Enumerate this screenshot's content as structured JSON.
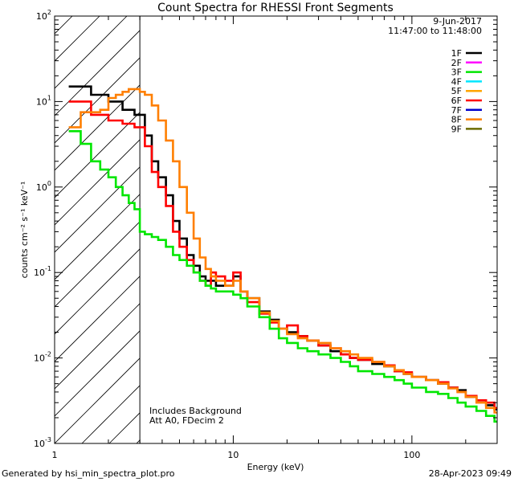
{
  "chart_data": {
    "type": "line",
    "title": "Count Spectra for RHESSI Front Segments",
    "xlabel": "Energy (keV)",
    "ylabel": "counts cm⁻² s⁻¹ keV⁻¹",
    "xscale": "log",
    "yscale": "log",
    "xlim": [
      1.0,
      300.0
    ],
    "ylim": [
      0.001,
      100.0
    ],
    "x_ticks": [
      {
        "value": 1,
        "label": "1"
      },
      {
        "value": 10,
        "label": "10"
      },
      {
        "value": 100,
        "label": "100"
      }
    ],
    "y_ticks": [
      {
        "value": 100,
        "base": "10",
        "exp": "2"
      },
      {
        "value": 10,
        "base": "10",
        "exp": "1"
      },
      {
        "value": 1,
        "base": "10",
        "exp": "0"
      },
      {
        "value": 0.1,
        "base": "10",
        "exp": "-1"
      },
      {
        "value": 0.01,
        "base": "10",
        "exp": "-2"
      },
      {
        "value": 0.001,
        "base": "10",
        "exp": "-3"
      }
    ],
    "hatched_region": {
      "x_from": 1.0,
      "x_to": 3.0,
      "description": "excluded below 3 keV"
    },
    "vertical_line_x": 3.0,
    "legend": {
      "date": "9-Jun-2017",
      "time_range": "11:47:00 to 11:48:00",
      "position": "top-right",
      "entries": [
        {
          "label": "1F",
          "color": "#000000"
        },
        {
          "label": "2F",
          "color": "#ff00ff"
        },
        {
          "label": "3F",
          "color": "#00e600"
        },
        {
          "label": "4F",
          "color": "#00e6ff"
        },
        {
          "label": "5F",
          "color": "#ffa500"
        },
        {
          "label": "6F",
          "color": "#ff0000"
        },
        {
          "label": "7F",
          "color": "#0000cc"
        },
        {
          "label": "8F",
          "color": "#ff7f00"
        },
        {
          "label": "9F",
          "color": "#6b6b00"
        }
      ]
    },
    "annotations": [
      "Includes Background",
      "Att A0, FDecim 2"
    ],
    "series": [
      {
        "name": "1F",
        "color": "#000000",
        "points": [
          [
            1.2,
            15
          ],
          [
            1.4,
            15
          ],
          [
            1.6,
            12
          ],
          [
            1.8,
            12
          ],
          [
            2.0,
            10
          ],
          [
            2.2,
            10
          ],
          [
            2.4,
            8
          ],
          [
            2.6,
            8
          ],
          [
            2.8,
            7
          ],
          [
            3.0,
            7
          ],
          [
            3.2,
            4
          ],
          [
            3.5,
            2
          ],
          [
            3.8,
            1.3
          ],
          [
            4.2,
            0.8
          ],
          [
            4.6,
            0.4
          ],
          [
            5.0,
            0.25
          ],
          [
            5.5,
            0.16
          ],
          [
            6.0,
            0.12
          ],
          [
            6.5,
            0.09
          ],
          [
            7.0,
            0.08
          ],
          [
            7.5,
            0.08
          ],
          [
            8.0,
            0.07
          ],
          [
            9.0,
            0.07
          ],
          [
            10.0,
            0.09
          ],
          [
            11.0,
            0.06
          ],
          [
            12.0,
            0.05
          ],
          [
            14.0,
            0.035
          ],
          [
            16.0,
            0.028
          ],
          [
            18.0,
            0.022
          ],
          [
            20.0,
            0.02
          ],
          [
            23.0,
            0.018
          ],
          [
            26.0,
            0.016
          ],
          [
            30.0,
            0.014
          ],
          [
            35.0,
            0.012
          ],
          [
            40.0,
            0.011
          ],
          [
            45.0,
            0.01
          ],
          [
            50.0,
            0.0095
          ],
          [
            60.0,
            0.0085
          ],
          [
            70.0,
            0.008
          ],
          [
            80.0,
            0.007
          ],
          [
            90.0,
            0.0065
          ],
          [
            100.0,
            0.006
          ],
          [
            120.0,
            0.0055
          ],
          [
            140.0,
            0.005
          ],
          [
            160.0,
            0.0045
          ],
          [
            180.0,
            0.0042
          ],
          [
            200.0,
            0.0035
          ],
          [
            230.0,
            0.003
          ],
          [
            260.0,
            0.0028
          ],
          [
            290.0,
            0.0025
          ]
        ]
      },
      {
        "name": "6F",
        "color": "#ff0000",
        "points": [
          [
            1.2,
            10
          ],
          [
            1.4,
            10
          ],
          [
            1.6,
            7
          ],
          [
            1.8,
            7
          ],
          [
            2.0,
            6
          ],
          [
            2.2,
            6
          ],
          [
            2.4,
            5.5
          ],
          [
            2.6,
            5.5
          ],
          [
            2.8,
            5
          ],
          [
            3.0,
            5
          ],
          [
            3.2,
            3
          ],
          [
            3.5,
            1.5
          ],
          [
            3.8,
            1.0
          ],
          [
            4.2,
            0.6
          ],
          [
            4.6,
            0.3
          ],
          [
            5.0,
            0.2
          ],
          [
            5.5,
            0.14
          ],
          [
            6.0,
            0.1
          ],
          [
            6.5,
            0.08
          ],
          [
            7.0,
            0.07
          ],
          [
            7.5,
            0.1
          ],
          [
            8.0,
            0.09
          ],
          [
            9.0,
            0.08
          ],
          [
            10.0,
            0.1
          ],
          [
            11.0,
            0.06
          ],
          [
            12.0,
            0.045
          ],
          [
            14.0,
            0.033
          ],
          [
            16.0,
            0.026
          ],
          [
            18.0,
            0.022
          ],
          [
            20.0,
            0.024
          ],
          [
            23.0,
            0.018
          ],
          [
            26.0,
            0.016
          ],
          [
            30.0,
            0.014
          ],
          [
            35.0,
            0.013
          ],
          [
            40.0,
            0.011
          ],
          [
            45.0,
            0.01
          ],
          [
            50.0,
            0.0095
          ],
          [
            60.0,
            0.009
          ],
          [
            70.0,
            0.0082
          ],
          [
            80.0,
            0.007
          ],
          [
            90.0,
            0.0068
          ],
          [
            100.0,
            0.006
          ],
          [
            120.0,
            0.0055
          ],
          [
            140.0,
            0.0052
          ],
          [
            160.0,
            0.0045
          ],
          [
            180.0,
            0.004
          ],
          [
            200.0,
            0.0036
          ],
          [
            230.0,
            0.0032
          ],
          [
            260.0,
            0.003
          ],
          [
            290.0,
            0.0026
          ]
        ]
      },
      {
        "name": "8F",
        "color": "#ff7f00",
        "points": [
          [
            1.2,
            5
          ],
          [
            1.4,
            7.5
          ],
          [
            1.6,
            7.5
          ],
          [
            1.8,
            8
          ],
          [
            2.0,
            11
          ],
          [
            2.2,
            12
          ],
          [
            2.4,
            13
          ],
          [
            2.6,
            14
          ],
          [
            2.8,
            14
          ],
          [
            3.0,
            13
          ],
          [
            3.2,
            12
          ],
          [
            3.5,
            9
          ],
          [
            3.8,
            6
          ],
          [
            4.2,
            3.5
          ],
          [
            4.6,
            2
          ],
          [
            5.0,
            1.0
          ],
          [
            5.5,
            0.5
          ],
          [
            6.0,
            0.25
          ],
          [
            6.5,
            0.15
          ],
          [
            7.0,
            0.11
          ],
          [
            7.5,
            0.09
          ],
          [
            8.0,
            0.08
          ],
          [
            9.0,
            0.07
          ],
          [
            10.0,
            0.08
          ],
          [
            11.0,
            0.06
          ],
          [
            12.0,
            0.05
          ],
          [
            14.0,
            0.034
          ],
          [
            16.0,
            0.027
          ],
          [
            18.0,
            0.022
          ],
          [
            20.0,
            0.019
          ],
          [
            23.0,
            0.017
          ],
          [
            26.0,
            0.016
          ],
          [
            30.0,
            0.015
          ],
          [
            35.0,
            0.013
          ],
          [
            40.0,
            0.012
          ],
          [
            45.0,
            0.011
          ],
          [
            50.0,
            0.01
          ],
          [
            60.0,
            0.009
          ],
          [
            70.0,
            0.008
          ],
          [
            80.0,
            0.0072
          ],
          [
            90.0,
            0.0065
          ],
          [
            100.0,
            0.006
          ],
          [
            120.0,
            0.0055
          ],
          [
            140.0,
            0.005
          ],
          [
            160.0,
            0.0044
          ],
          [
            180.0,
            0.004
          ],
          [
            200.0,
            0.0035
          ],
          [
            230.0,
            0.003
          ],
          [
            260.0,
            0.0026
          ],
          [
            290.0,
            0.0023
          ]
        ]
      },
      {
        "name": "3F",
        "color": "#00e600",
        "points": [
          [
            1.2,
            4.5
          ],
          [
            1.4,
            3.2
          ],
          [
            1.6,
            2
          ],
          [
            1.8,
            1.6
          ],
          [
            2.0,
            1.3
          ],
          [
            2.2,
            1.0
          ],
          [
            2.4,
            0.8
          ],
          [
            2.6,
            0.65
          ],
          [
            2.8,
            0.55
          ],
          [
            3.0,
            0.3
          ],
          [
            3.2,
            0.28
          ],
          [
            3.5,
            0.26
          ],
          [
            3.8,
            0.24
          ],
          [
            4.2,
            0.2
          ],
          [
            4.6,
            0.16
          ],
          [
            5.0,
            0.14
          ],
          [
            5.5,
            0.12
          ],
          [
            6.0,
            0.1
          ],
          [
            6.5,
            0.08
          ],
          [
            7.0,
            0.07
          ],
          [
            7.5,
            0.065
          ],
          [
            8.0,
            0.06
          ],
          [
            9.0,
            0.06
          ],
          [
            10.0,
            0.055
          ],
          [
            11.0,
            0.05
          ],
          [
            12.0,
            0.04
          ],
          [
            14.0,
            0.03
          ],
          [
            16.0,
            0.022
          ],
          [
            18.0,
            0.017
          ],
          [
            20.0,
            0.015
          ],
          [
            23.0,
            0.013
          ],
          [
            26.0,
            0.012
          ],
          [
            30.0,
            0.011
          ],
          [
            35.0,
            0.01
          ],
          [
            40.0,
            0.009
          ],
          [
            45.0,
            0.008
          ],
          [
            50.0,
            0.007
          ],
          [
            60.0,
            0.0065
          ],
          [
            70.0,
            0.006
          ],
          [
            80.0,
            0.0055
          ],
          [
            90.0,
            0.005
          ],
          [
            100.0,
            0.0045
          ],
          [
            120.0,
            0.004
          ],
          [
            140.0,
            0.0038
          ],
          [
            160.0,
            0.0034
          ],
          [
            180.0,
            0.003
          ],
          [
            200.0,
            0.0027
          ],
          [
            230.0,
            0.0024
          ],
          [
            260.0,
            0.0021
          ],
          [
            290.0,
            0.0018
          ]
        ]
      }
    ]
  },
  "footer": {
    "generated_by": "Generated by hsi_min_spectra_plot.pro",
    "timestamp": "28-Apr-2023 09:49"
  }
}
